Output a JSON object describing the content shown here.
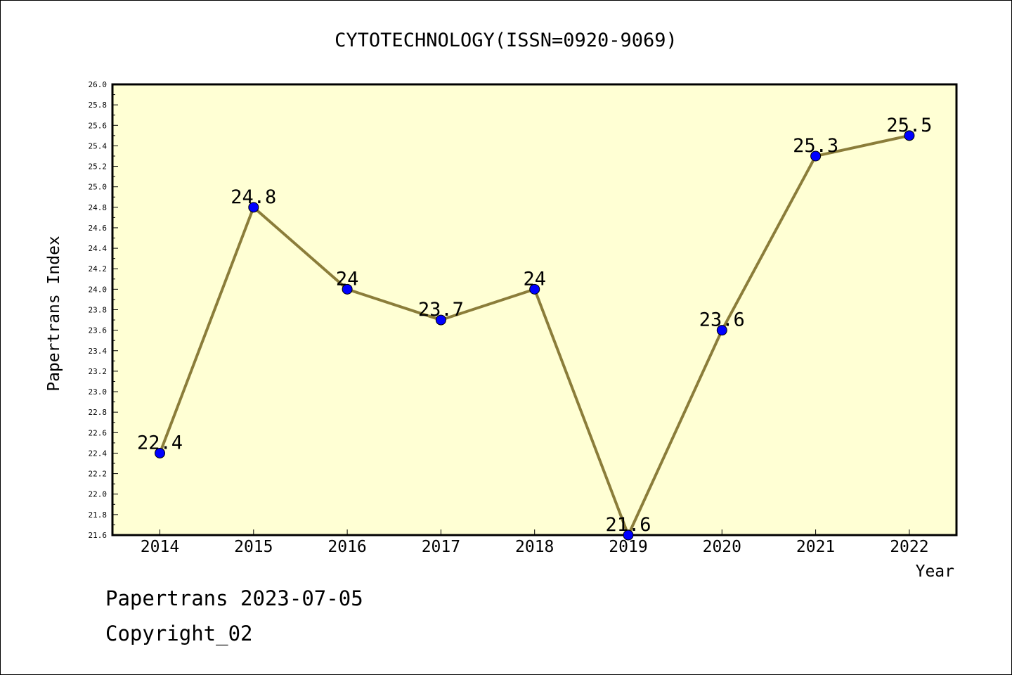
{
  "chart_data": {
    "type": "line",
    "title": "CYTOTECHNOLOGY(ISSN=0920-9069)",
    "xlabel": "Year",
    "ylabel": "Papertrans Index",
    "categories": [
      "2014",
      "2015",
      "2016",
      "2017",
      "2018",
      "2019",
      "2020",
      "2021",
      "2022"
    ],
    "series": [
      {
        "values": [
          22.4,
          24.8,
          24,
          23.7,
          24,
          21.6,
          23.6,
          25.3,
          25.5
        ],
        "labels": [
          "22.4",
          "24.8",
          "24",
          "23.7",
          "24",
          "21.6",
          "23.6",
          "25.3",
          "25.5"
        ]
      }
    ],
    "ylim": [
      21.6,
      26.0
    ],
    "yticks": [
      "21.6",
      "21.8",
      "22.0",
      "22.2",
      "22.4",
      "22.6",
      "22.8",
      "23.0",
      "23.2",
      "23.4",
      "23.6",
      "23.8",
      "24.0",
      "24.2",
      "24.4",
      "24.6",
      "24.8",
      "25.0",
      "25.2",
      "25.4",
      "25.6",
      "25.8",
      "26.0"
    ],
    "grid": false,
    "colors": {
      "plot_bg": "#ffffd4",
      "line": "#8b7d3a",
      "marker": "#0000ff"
    }
  },
  "footer": {
    "line1": "Papertrans 2023-07-05",
    "line2": "Copyright_02"
  }
}
